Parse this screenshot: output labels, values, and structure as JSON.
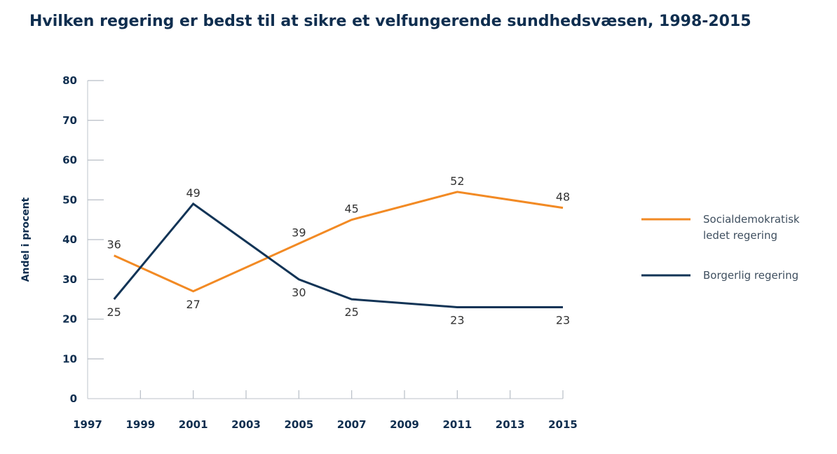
{
  "chart_data": {
    "type": "line",
    "title": "Hvilken regering er bedst til at sikre et velfungerende sundhedsvæsen, 1998-2015",
    "xlabel": "",
    "ylabel": "Andel i procent",
    "xlim": [
      1997,
      2015
    ],
    "ylim": [
      0,
      80
    ],
    "x_ticks": [
      "1997",
      "1999",
      "2001",
      "2003",
      "2005",
      "2007",
      "2009",
      "2011",
      "2013",
      "2015"
    ],
    "y_ticks": [
      "0",
      "10",
      "20",
      "30",
      "40",
      "50",
      "60",
      "70",
      "80"
    ],
    "grid": false,
    "legend_position": "right",
    "series": [
      {
        "name": "Socialdemokratisk ledet regering",
        "legend_lines": [
          "Socialdemokratisk",
          "ledet regering"
        ],
        "color": "#f28a24",
        "x": [
          1998,
          2001,
          2005,
          2007,
          2011,
          2015
        ],
        "values": [
          36,
          27,
          39,
          45,
          52,
          48
        ],
        "label_pos": [
          "above",
          "below",
          "above",
          "above",
          "above",
          "above"
        ]
      },
      {
        "name": "Borgerlig regering",
        "legend_lines": [
          "Borgerlig regering"
        ],
        "color": "#123456",
        "x": [
          1998,
          2001,
          2005,
          2007,
          2011,
          2015
        ],
        "values": [
          25,
          49,
          30,
          25,
          23,
          23
        ],
        "label_pos": [
          "below",
          "above",
          "below",
          "below",
          "below",
          "below"
        ]
      }
    ]
  }
}
